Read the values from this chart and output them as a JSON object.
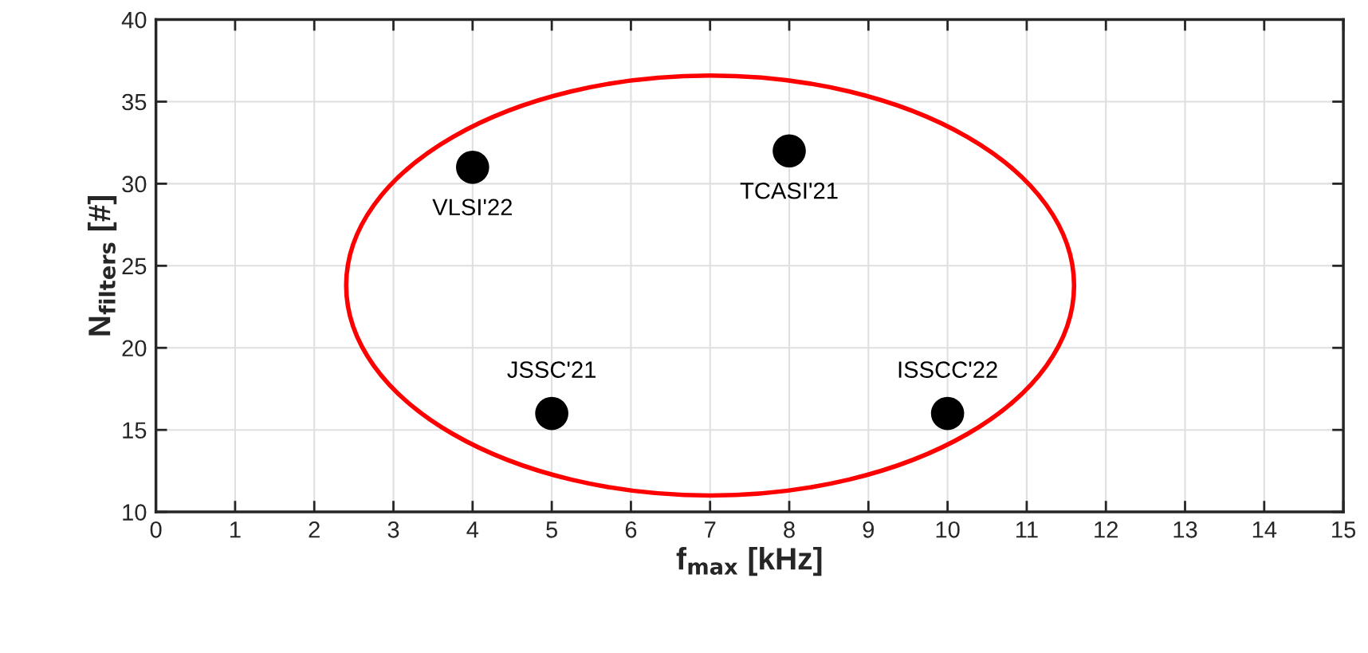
{
  "chart_data": {
    "type": "scatter",
    "xlabel": "f$_{max}$ [kHz]",
    "ylabel": "N$_{filters}$ [#]",
    "xlim": [
      0,
      15
    ],
    "xticks": [
      0,
      1,
      2,
      3,
      4,
      5,
      6,
      7,
      8,
      9,
      10,
      11,
      12,
      13,
      14,
      15
    ],
    "ylim": [
      10,
      40
    ],
    "yticks": [
      10,
      15,
      20,
      25,
      30,
      35,
      40
    ],
    "grid": true,
    "marker": "circle",
    "series": [
      {
        "color": "#000000",
        "x": [
          4,
          8,
          5,
          10
        ],
        "values": [
          31,
          32,
          16,
          16
        ]
      }
    ],
    "annotations": [
      {
        "text": "VLSI'22",
        "x": 4,
        "y": 31
      },
      {
        "text": "TCASI'21",
        "x": 8,
        "y": 32
      },
      {
        "text": "JSSC'21",
        "x": 5,
        "y": 16
      },
      {
        "text": "ISSCC'22",
        "x": 10,
        "y": 16
      }
    ]
  }
}
